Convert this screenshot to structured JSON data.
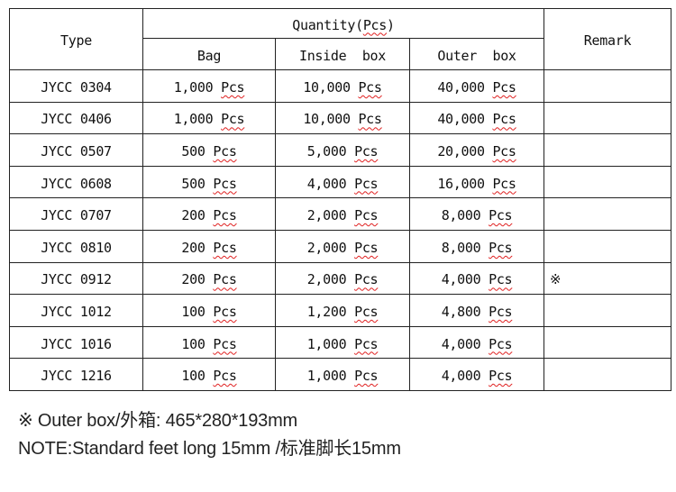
{
  "header": {
    "type": "Type",
    "quantity_prefix": "Quantity(",
    "quantity_unit": "Pcs",
    "quantity_suffix": ")",
    "bag": "Bag",
    "inside": "Inside  box",
    "outer": "Outer  box",
    "remark": "Remark"
  },
  "unit": "Pcs",
  "rows": [
    {
      "type": "JYCC 0304",
      "bag": "1,000",
      "inside": "10,000",
      "outer": "40,000",
      "remark": ""
    },
    {
      "type": "JYCC 0406",
      "bag": "1,000",
      "inside": "10,000",
      "outer": "40,000",
      "remark": ""
    },
    {
      "type": "JYCC 0507",
      "bag": "500",
      "inside": "5,000",
      "outer": "20,000",
      "remark": ""
    },
    {
      "type": "JYCC 0608",
      "bag": "500",
      "inside": "4,000",
      "outer": "16,000",
      "remark": ""
    },
    {
      "type": "JYCC 0707",
      "bag": "200",
      "inside": "2,000",
      "outer": "8,000",
      "remark": ""
    },
    {
      "type": "JYCC 0810",
      "bag": "200",
      "inside": "2,000",
      "outer": "8,000",
      "remark": ""
    },
    {
      "type": "JYCC 0912",
      "bag": "200",
      "inside": "2,000",
      "outer": "4,000",
      "remark": "※"
    },
    {
      "type": "JYCC 1012",
      "bag": "100",
      "inside": "1,200",
      "outer": "4,800",
      "remark": ""
    },
    {
      "type": "JYCC 1016",
      "bag": "100",
      "inside": "1,000",
      "outer": "4,000",
      "remark": ""
    },
    {
      "type": "JYCC 1216",
      "bag": "100",
      "inside": "1,000",
      "outer": "4,000",
      "remark": ""
    }
  ],
  "notes": {
    "line1": "※ Outer box/外箱: 465*280*193mm",
    "line2": "NOTE:Standard feet long 15mm /标准脚长15mm"
  }
}
